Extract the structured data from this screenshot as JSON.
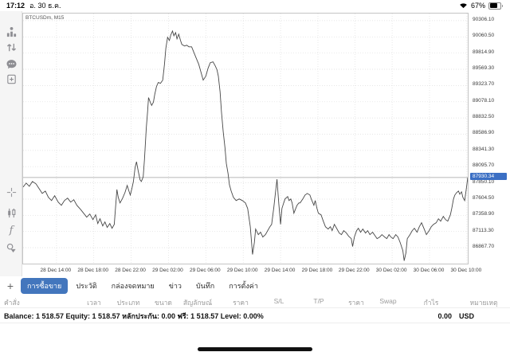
{
  "status_bar": {
    "time": "17:12",
    "date": "อ. 30 ธ.ค.",
    "battery_percent": "67%"
  },
  "sidebar": {
    "icons": [
      "quotes",
      "trade",
      "chat",
      "new-order",
      "crosshair",
      "candles",
      "indicators",
      "objects"
    ],
    "timeframe": "M15"
  },
  "chart": {
    "symbol_label": "BTCUSDm, M15",
    "current_price_label": "87930.34"
  },
  "chart_data": {
    "type": "line",
    "title": "BTCUSDm, M15",
    "xlabel": "",
    "ylabel": "",
    "grid": true,
    "legend": "none",
    "ylim": [
      86627,
      90414
    ],
    "current_price": 87930.34,
    "price_ticks": [
      90306.1,
      90060.5,
      89814.9,
      89569.3,
      89323.7,
      89078.1,
      88832.5,
      88586.9,
      88341.3,
      88095.7,
      87850.1,
      87604.5,
      87358.9,
      87113.3,
      86867.7
    ],
    "time_ticks": {
      "labels": [
        "28 Dec 14:00",
        "28 Dec 18:00",
        "28 Dec 22:00",
        "29 Dec 02:00",
        "29 Dec 06:00",
        "29 Dec 10:00",
        "29 Dec 14:00",
        "29 Dec 18:00",
        "29 Dec 22:00",
        "30 Dec 02:00",
        "30 Dec 06:00",
        "30 Dec 10:00"
      ],
      "pct": [
        7.5,
        15.9,
        24.3,
        32.7,
        41.1,
        49.5,
        57.9,
        66.3,
        74.6,
        83.0,
        91.4,
        99.8
      ]
    },
    "series": [
      {
        "name": "BTCUSDm M15 close",
        "points": [
          [
            0,
            87786
          ],
          [
            0.7,
            87846
          ],
          [
            1.4,
            87798
          ],
          [
            2.1,
            87870
          ],
          [
            2.9,
            87834
          ],
          [
            3.6,
            87762
          ],
          [
            4.3,
            87690
          ],
          [
            5,
            87726
          ],
          [
            5.7,
            87630
          ],
          [
            6.4,
            87582
          ],
          [
            7.1,
            87654
          ],
          [
            7.9,
            87558
          ],
          [
            8.6,
            87510
          ],
          [
            9.3,
            87582
          ],
          [
            10,
            87618
          ],
          [
            10.7,
            87558
          ],
          [
            11.4,
            87594
          ],
          [
            12.1,
            87510
          ],
          [
            12.9,
            87450
          ],
          [
            13.6,
            87390
          ],
          [
            14.3,
            87330
          ],
          [
            15,
            87378
          ],
          [
            15.7,
            87294
          ],
          [
            16.3,
            87366
          ],
          [
            16.8,
            87234
          ],
          [
            17.3,
            87306
          ],
          [
            17.9,
            87198
          ],
          [
            18.4,
            87258
          ],
          [
            18.9,
            87174
          ],
          [
            19.5,
            87234
          ],
          [
            20,
            87162
          ],
          [
            20.5,
            87222
          ],
          [
            21.1,
            87750
          ],
          [
            21.4,
            87630
          ],
          [
            21.8,
            87546
          ],
          [
            22.3,
            87606
          ],
          [
            22.9,
            87702
          ],
          [
            23.4,
            87810
          ],
          [
            23.8,
            87726
          ],
          [
            24.1,
            87666
          ],
          [
            24.5,
            87774
          ],
          [
            24.8,
            87870
          ],
          [
            25.2,
            88086
          ],
          [
            25.5,
            88170
          ],
          [
            25.9,
            88026
          ],
          [
            26.3,
            87894
          ],
          [
            26.6,
            87870
          ],
          [
            27,
            87942
          ],
          [
            27.3,
            88206
          ],
          [
            27.7,
            88686
          ],
          [
            28,
            88926
          ],
          [
            28.2,
            89142
          ],
          [
            28.6,
            89070
          ],
          [
            28.9,
            89022
          ],
          [
            29.3,
            89070
          ],
          [
            29.6,
            89190
          ],
          [
            30,
            89310
          ],
          [
            30.4,
            89370
          ],
          [
            30.9,
            89358
          ],
          [
            31.4,
            89406
          ],
          [
            31.8,
            89646
          ],
          [
            32.1,
            89886
          ],
          [
            32.5,
            90054
          ],
          [
            32.9,
            90006
          ],
          [
            33.2,
            90090
          ],
          [
            33.6,
            90150
          ],
          [
            33.9,
            90078
          ],
          [
            34.3,
            90126
          ],
          [
            34.6,
            90030
          ],
          [
            35,
            90102
          ],
          [
            35.4,
            90006
          ],
          [
            35.7,
            89946
          ],
          [
            36.3,
            89922
          ],
          [
            36.8,
            89934
          ],
          [
            37.3,
            89910
          ],
          [
            37.9,
            89910
          ],
          [
            38.4,
            89826
          ],
          [
            38.9,
            89742
          ],
          [
            39.5,
            89646
          ],
          [
            40,
            89526
          ],
          [
            40.5,
            89406
          ],
          [
            41.1,
            89466
          ],
          [
            41.6,
            89586
          ],
          [
            42.1,
            89670
          ],
          [
            42.7,
            89682
          ],
          [
            43.2,
            89622
          ],
          [
            43.6,
            89562
          ],
          [
            43.9,
            89466
          ],
          [
            44.3,
            89226
          ],
          [
            44.6,
            88926
          ],
          [
            45,
            88626
          ],
          [
            45.4,
            88386
          ],
          [
            45.7,
            88146
          ],
          [
            46.1,
            87990
          ],
          [
            46.4,
            87822
          ],
          [
            46.8,
            87726
          ],
          [
            47.3,
            87630
          ],
          [
            47.9,
            87582
          ],
          [
            48.6,
            87606
          ],
          [
            49.3,
            87582
          ],
          [
            50,
            87546
          ],
          [
            50.5,
            87462
          ],
          [
            51.1,
            87186
          ],
          [
            51.6,
            86766
          ],
          [
            52,
            86946
          ],
          [
            52.3,
            87150
          ],
          [
            52.9,
            87066
          ],
          [
            53.4,
            87102
          ],
          [
            53.9,
            87030
          ],
          [
            54.5,
            87066
          ],
          [
            55,
            87126
          ],
          [
            55.5,
            87186
          ],
          [
            55.9,
            87222
          ],
          [
            56.4,
            87486
          ],
          [
            56.8,
            87726
          ],
          [
            57.1,
            87906
          ],
          [
            57.5,
            87546
          ],
          [
            57.9,
            87222
          ],
          [
            58.2,
            87462
          ],
          [
            58.6,
            87546
          ],
          [
            58.9,
            87606
          ],
          [
            59.5,
            87642
          ],
          [
            59.8,
            87582
          ],
          [
            60.2,
            87606
          ],
          [
            60.5,
            87546
          ],
          [
            60.9,
            87390
          ],
          [
            61.3,
            87462
          ],
          [
            61.6,
            87510
          ],
          [
            62,
            87546
          ],
          [
            62.3,
            87546
          ],
          [
            62.9,
            87606
          ],
          [
            63.4,
            87666
          ],
          [
            63.9,
            87690
          ],
          [
            64.5,
            87666
          ],
          [
            64.8,
            87606
          ],
          [
            65.4,
            87510
          ],
          [
            65.7,
            87582
          ],
          [
            66.1,
            87462
          ],
          [
            66.4,
            87390
          ],
          [
            67,
            87366
          ],
          [
            67.5,
            87270
          ],
          [
            68,
            87186
          ],
          [
            68.6,
            87150
          ],
          [
            69.1,
            87186
          ],
          [
            69.5,
            87126
          ],
          [
            70,
            87222
          ],
          [
            70.5,
            87162
          ],
          [
            71.1,
            87090
          ],
          [
            71.6,
            87066
          ],
          [
            72.1,
            87126
          ],
          [
            72.7,
            87090
          ],
          [
            73.2,
            87042
          ],
          [
            73.8,
            87006
          ],
          [
            74.1,
            86886
          ],
          [
            74.5,
            87030
          ],
          [
            75,
            87126
          ],
          [
            75.4,
            87162
          ],
          [
            75.9,
            87102
          ],
          [
            76.4,
            87150
          ],
          [
            77,
            87090
          ],
          [
            77.5,
            87126
          ],
          [
            78,
            87066
          ],
          [
            78.6,
            87102
          ],
          [
            79.1,
            87054
          ],
          [
            79.6,
            87006
          ],
          [
            80.2,
            87030
          ],
          [
            80.7,
            87066
          ],
          [
            81.3,
            87030
          ],
          [
            81.8,
            87006
          ],
          [
            82.3,
            87066
          ],
          [
            82.7,
            87030
          ],
          [
            83.2,
            87006
          ],
          [
            83.8,
            87066
          ],
          [
            84.3,
            87030
          ],
          [
            84.8,
            86946
          ],
          [
            85.4,
            86826
          ],
          [
            85.7,
            86670
          ],
          [
            86.1,
            86790
          ],
          [
            86.4,
            87006
          ],
          [
            87,
            87066
          ],
          [
            87.5,
            87126
          ],
          [
            88,
            87162
          ],
          [
            88.6,
            87102
          ],
          [
            89.1,
            87186
          ],
          [
            89.6,
            87246
          ],
          [
            90.2,
            87150
          ],
          [
            90.7,
            87066
          ],
          [
            91.3,
            87126
          ],
          [
            91.8,
            87186
          ],
          [
            92.3,
            87222
          ],
          [
            92.9,
            87246
          ],
          [
            93.4,
            87306
          ],
          [
            93.9,
            87270
          ],
          [
            94.5,
            87342
          ],
          [
            95,
            87294
          ],
          [
            95.5,
            87270
          ],
          [
            96.1,
            87366
          ],
          [
            96.4,
            87462
          ],
          [
            96.8,
            87606
          ],
          [
            97.1,
            87666
          ],
          [
            97.5,
            87702
          ],
          [
            97.9,
            87726
          ],
          [
            98.2,
            87678
          ],
          [
            98.6,
            87714
          ],
          [
            98.9,
            87630
          ],
          [
            99.3,
            87582
          ],
          [
            99.6,
            87726
          ],
          [
            100,
            87930
          ]
        ]
      }
    ]
  },
  "bottom_panel": {
    "add_button": "+",
    "tabs": [
      {
        "label": "การซื้อขาย",
        "selected": true
      },
      {
        "label": "ประวัติ",
        "selected": false
      },
      {
        "label": "กล่องจดหมาย",
        "selected": false
      },
      {
        "label": "ข่าว",
        "selected": false
      },
      {
        "label": "บันทึก",
        "selected": false
      },
      {
        "label": "การตั้งค่า",
        "selected": false
      }
    ],
    "table_headers": [
      "คำสั่ง",
      "เวลา",
      "ประเภท",
      "ขนาด",
      "สัญลักษณ์",
      "ราคา",
      "S/L",
      "T/P",
      "ราคา",
      "Swap",
      "กำไร",
      "หมายเหตุ"
    ],
    "summary_text": "Balance: 1 518.57 Equity: 1 518.57 หลักประกัน: 0.00 ฟรี: 1 518.57 Level: 0.00%",
    "profit": "0.00",
    "currency": "USD"
  }
}
